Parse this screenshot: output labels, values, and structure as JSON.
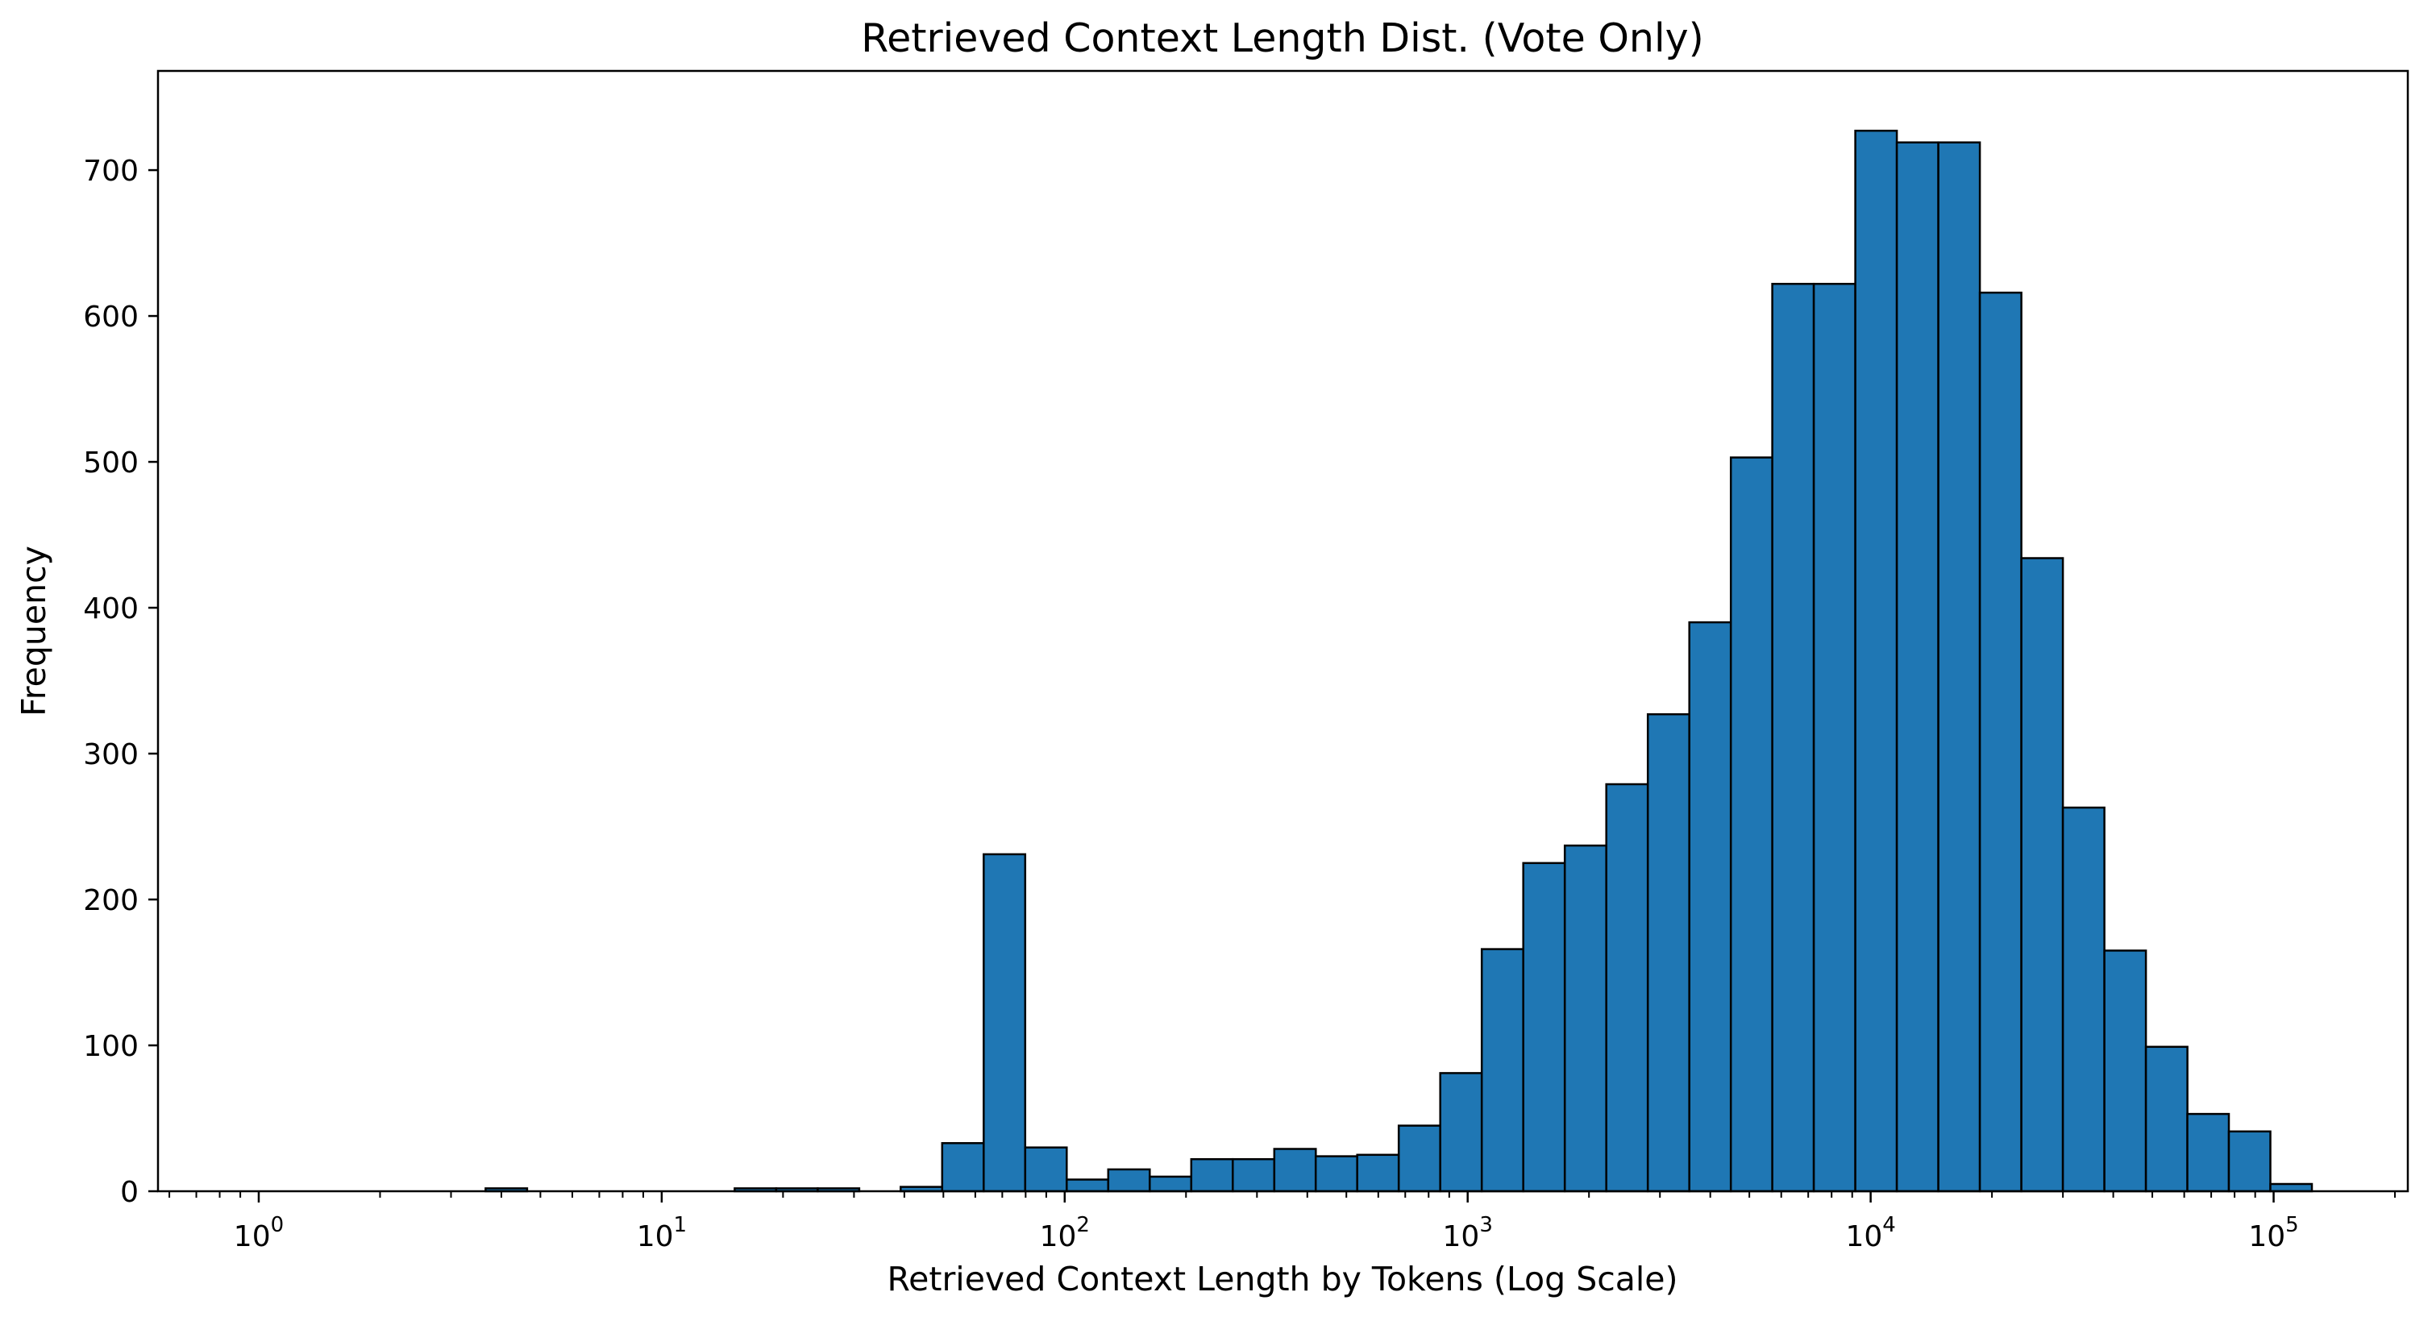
{
  "chart_data": {
    "type": "bar",
    "subtype": "histogram-log-x",
    "title": "Retrieved Context Length Dist. (Vote Only)",
    "xlabel": "Retrieved Context Length by Tokens (Log Scale)",
    "ylabel": "Frequency",
    "x_scale": "log10",
    "xlim_log10": [
      -0.25,
      5.333
    ],
    "ylim": [
      0,
      768
    ],
    "grid": false,
    "legend": null,
    "bin_edges_log10": [
      0.46,
      0.563,
      0.666,
      0.769,
      0.872,
      0.975,
      1.078,
      1.181,
      1.284,
      1.387,
      1.49,
      1.593,
      1.696,
      1.799,
      1.902,
      2.005,
      2.108,
      2.211,
      2.314,
      2.417,
      2.52,
      2.623,
      2.726,
      2.829,
      2.932,
      3.035,
      3.138,
      3.241,
      3.344,
      3.447,
      3.55,
      3.653,
      3.756,
      3.859,
      3.962,
      4.065,
      4.168,
      4.271,
      4.374,
      4.477,
      4.58,
      4.683,
      4.786,
      4.889,
      4.992,
      5.095
    ],
    "counts": [
      0,
      2,
      0,
      0,
      0,
      0,
      0,
      2,
      2,
      2,
      0,
      3,
      33,
      231,
      30,
      8,
      15,
      10,
      22,
      22,
      29,
      24,
      25,
      45,
      81,
      166,
      225,
      237,
      279,
      327,
      390,
      503,
      622,
      622,
      727,
      719,
      719,
      616,
      434,
      263,
      165,
      99,
      53,
      41,
      5
    ],
    "yticks": [
      {
        "value": 0,
        "label": "0"
      },
      {
        "value": 100,
        "label": "100"
      },
      {
        "value": 200,
        "label": "200"
      },
      {
        "value": 300,
        "label": "300"
      },
      {
        "value": 400,
        "label": "400"
      },
      {
        "value": 500,
        "label": "500"
      },
      {
        "value": 600,
        "label": "600"
      },
      {
        "value": 700,
        "label": "700"
      }
    ],
    "xticks": {
      "base": "10",
      "exponents": [
        "0",
        "1",
        "2",
        "3",
        "4",
        "5"
      ],
      "minor_ticks": true
    },
    "colors": {
      "bar_fill": "#1f77b4",
      "bar_edge": "#000000",
      "spine": "#000000",
      "text": "#000000",
      "background": "#ffffff"
    }
  }
}
